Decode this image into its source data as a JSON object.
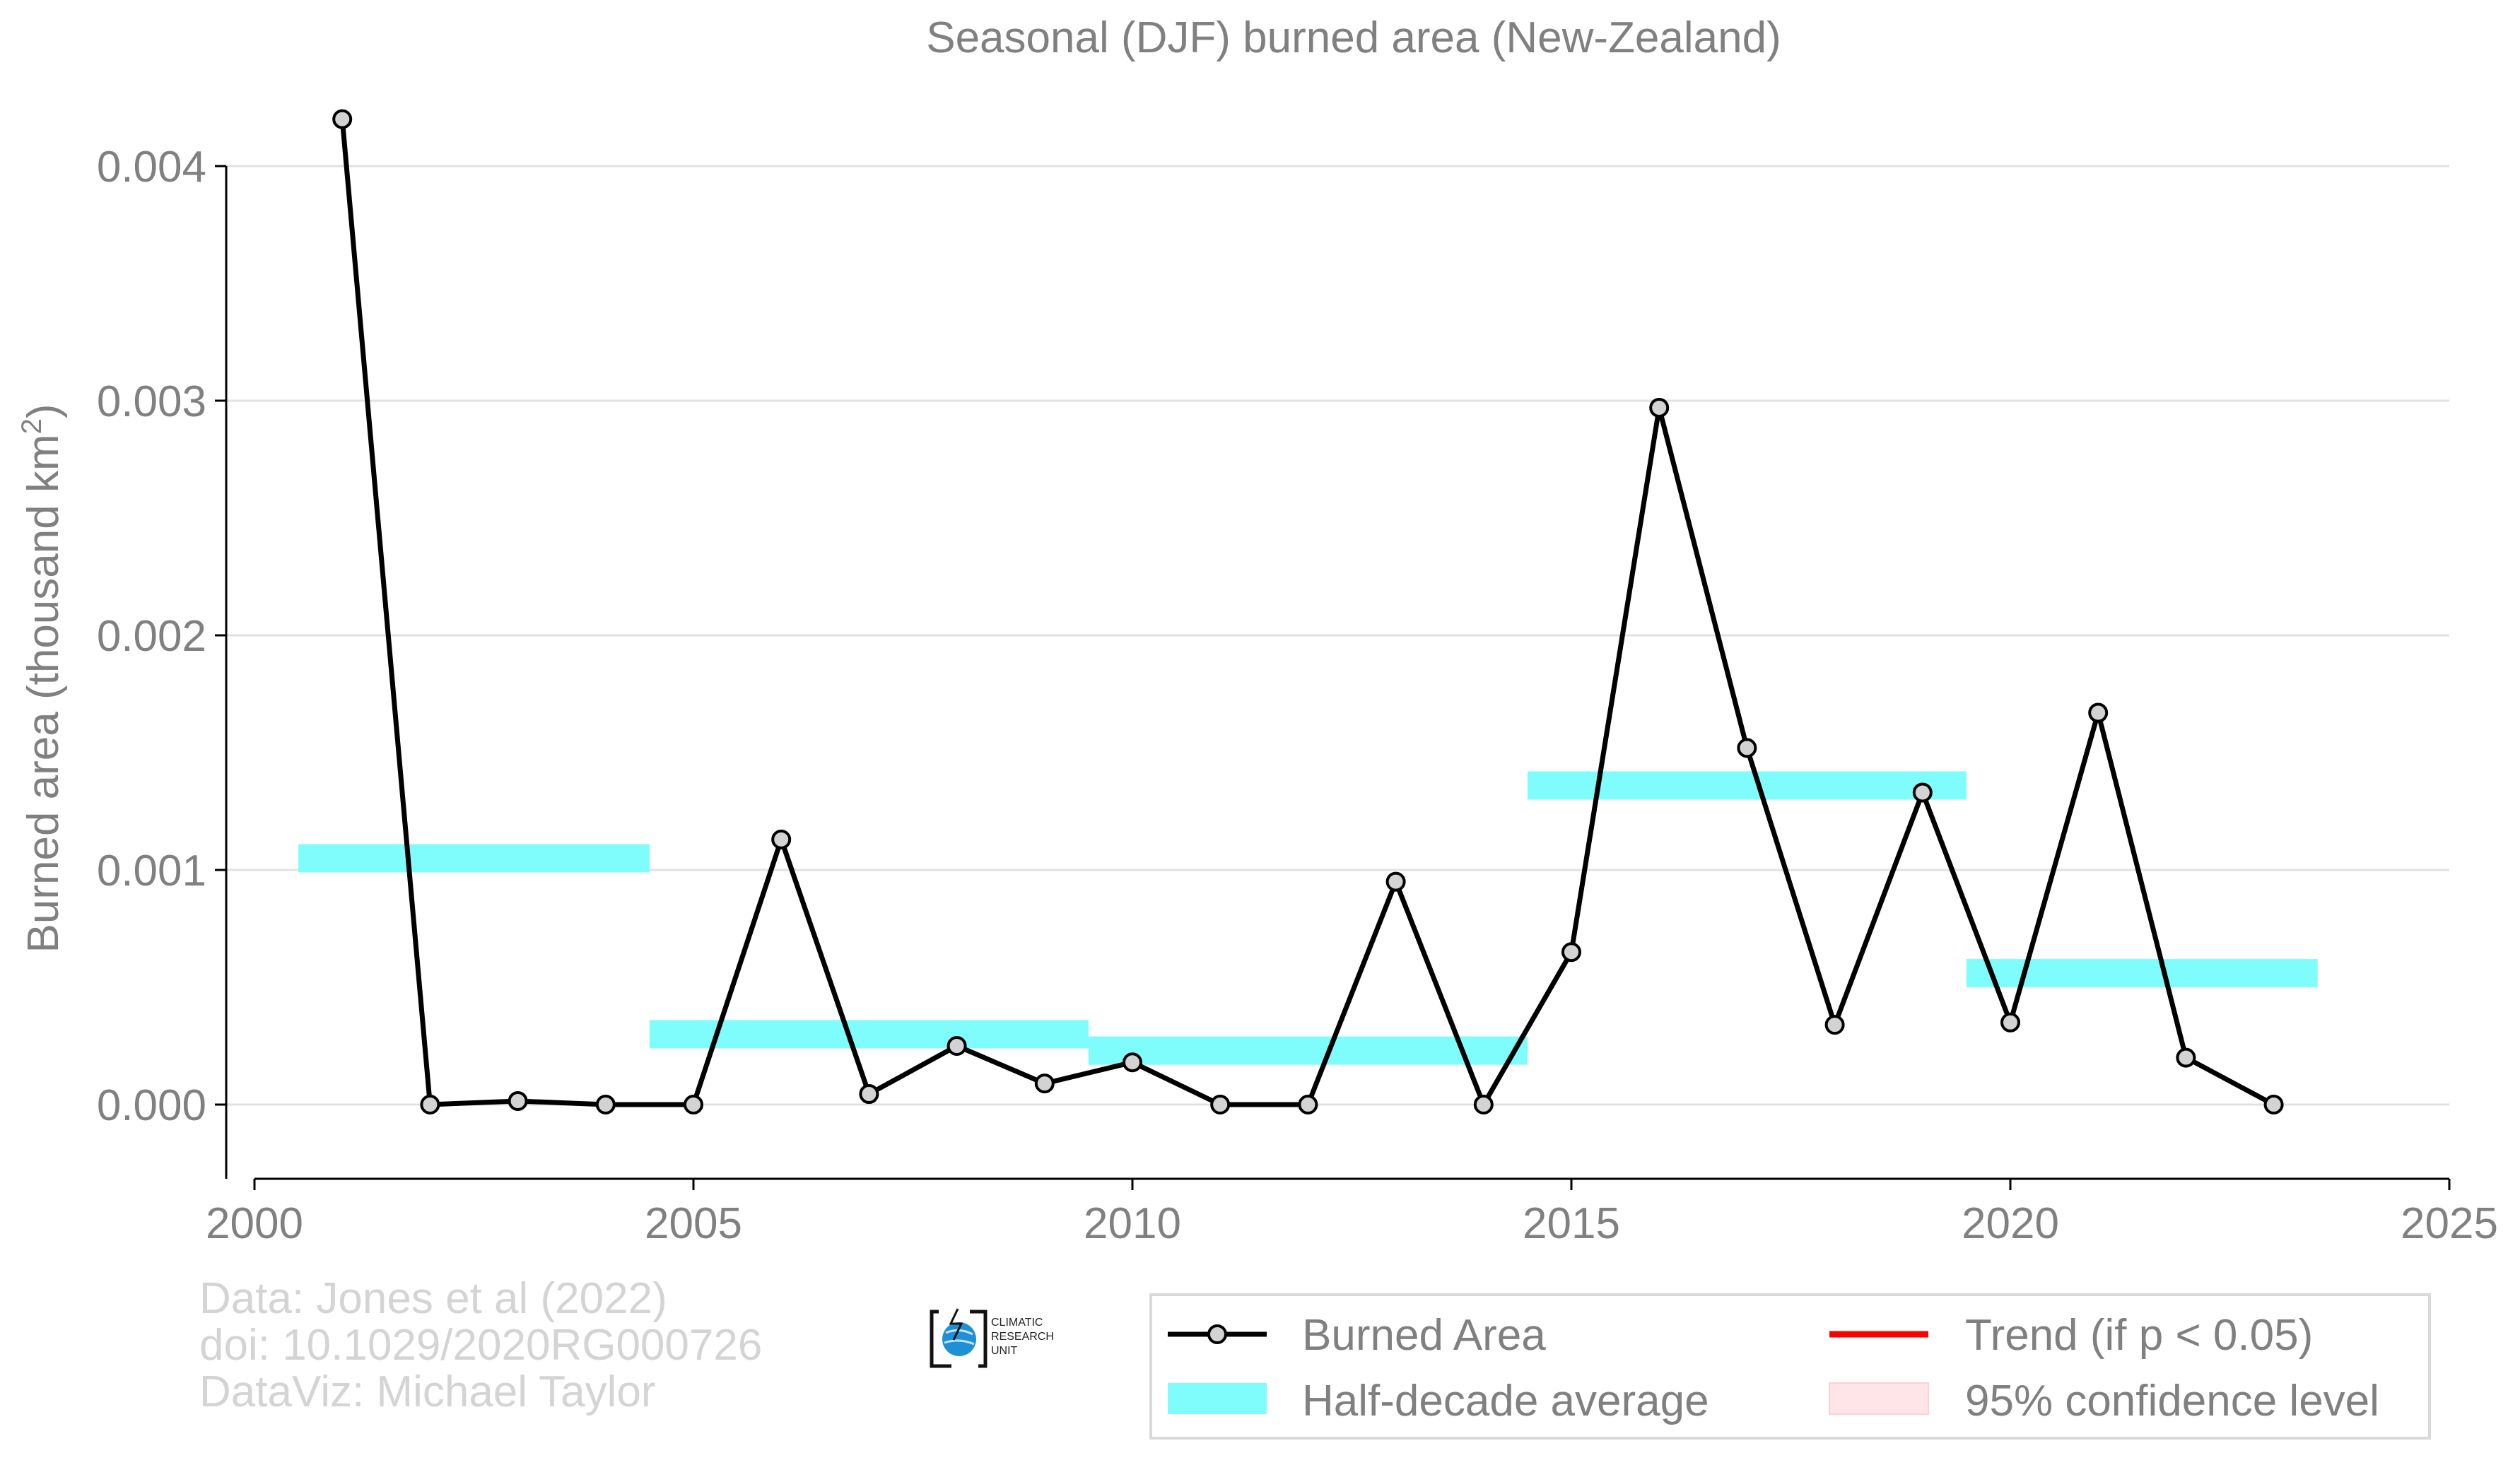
{
  "chart_data": {
    "type": "line",
    "title": "Seasonal (DJF) burned area (New-Zealand)",
    "xlabel": "",
    "ylabel": "Burned area (thousand km",
    "ylabel_sup": "2",
    "ylabel_close": ")",
    "xlim": [
      2000,
      2025
    ],
    "ylim": [
      -0.0003,
      0.0042
    ],
    "x_ticks": [
      2000,
      2005,
      2010,
      2015,
      2020,
      2025
    ],
    "y_ticks": [
      0.0,
      0.001,
      0.002,
      0.003,
      0.004
    ],
    "y_tick_labels": [
      "0.000",
      "0.001",
      "0.002",
      "0.003",
      "0.004"
    ],
    "grid": "horizontal",
    "series": [
      {
        "name": "Burned Area",
        "color": "#000000",
        "marker_fill": "#d3d3d3",
        "x": [
          2001,
          2002,
          2003,
          2004,
          2005,
          2006,
          2007,
          2008,
          2009,
          2010,
          2011,
          2012,
          2013,
          2014,
          2015,
          2016,
          2017,
          2018,
          2019,
          2020,
          2021,
          2022,
          2023
        ],
        "y": [
          0.0042,
          0.0,
          1.5e-05,
          0.0,
          0.0,
          0.00113,
          4.5e-05,
          0.00025,
          9e-05,
          0.00018,
          0.0,
          0.0,
          0.00095,
          0.0,
          0.00065,
          0.00297,
          0.00152,
          0.00034,
          0.00133,
          0.00035,
          0.00167,
          0.0002,
          0.0
        ]
      }
    ],
    "half_decade_average": {
      "name": "Half-decade average",
      "color": "#7ffcfc",
      "segments": [
        {
          "x_start": 2000.5,
          "x_end": 2004.5,
          "value": 0.00105
        },
        {
          "x_start": 2004.5,
          "x_end": 2009.5,
          "value": 0.0003
        },
        {
          "x_start": 2009.5,
          "x_end": 2014.5,
          "value": 0.00023
        },
        {
          "x_start": 2014.5,
          "x_end": 2019.5,
          "value": 0.00136
        },
        {
          "x_start": 2019.5,
          "x_end": 2023.5,
          "value": 0.00056
        }
      ]
    },
    "legend": {
      "placement": "bottom-right",
      "items": [
        {
          "label": "Burned Area",
          "kind": "line-marker",
          "color": "#000000"
        },
        {
          "label": "Trend (if p < 0.05)",
          "kind": "line",
          "color": "#ff0000"
        },
        {
          "label": "Half-decade average",
          "kind": "band",
          "color": "#7ffcfc"
        },
        {
          "label": "95% confidence level",
          "kind": "band",
          "color": "#ffe4e8"
        }
      ]
    }
  },
  "credits": {
    "line1": "Data: Jones et al (2022)",
    "line2": "doi: 10.1029/2020RG000726",
    "line3": "DataViz: Michael Taylor"
  },
  "logo": {
    "line1": "CLIMATIC",
    "line2": "RESEARCH",
    "line3": "UNIT"
  }
}
